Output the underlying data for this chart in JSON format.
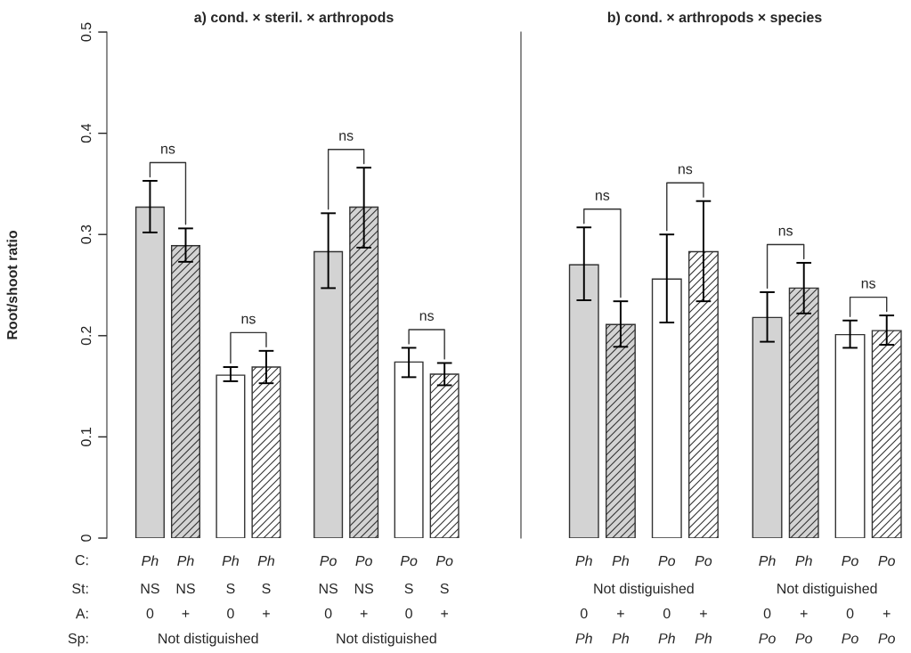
{
  "chart_data": [
    {
      "type": "bar",
      "title": "a) cond. × steril. × arthropods",
      "ylabel": "Root/shoot ratio",
      "categories": [
        "Ph",
        "Ph",
        "Ph",
        "Ph",
        "Po",
        "Po",
        "Po",
        "Po"
      ],
      "values": [
        0.327,
        0.289,
        0.161,
        0.169,
        0.283,
        0.327,
        0.174,
        0.162
      ],
      "errors": [
        [
          0.302,
          0.353
        ],
        [
          0.273,
          0.306
        ],
        [
          0.155,
          0.169
        ],
        [
          0.153,
          0.185
        ],
        [
          0.247,
          0.321
        ],
        [
          0.287,
          0.366
        ],
        [
          0.159,
          0.188
        ],
        [
          0.151,
          0.173
        ]
      ],
      "colors": [
        "#d3d3d3",
        "#d3d3d3",
        "#ffffff",
        "#ffffff",
        "#d3d3d3",
        "#d3d3d3",
        "#ffffff",
        "#ffffff"
      ],
      "ylim": [
        0,
        0.5
      ],
      "yticks": [
        0,
        0.1,
        0.2,
        0.3,
        0.4,
        0.5
      ],
      "grid": false,
      "legend": false,
      "annotations": [
        "C:",
        "St:",
        "A:",
        "Sp:",
        "NS",
        "NS",
        "S",
        "S",
        "NS",
        "NS",
        "S",
        "S",
        "0",
        "+",
        "0",
        "+",
        "0",
        "+",
        "0",
        "+",
        "Not distiguished",
        "Not distiguished",
        "ns",
        "ns",
        "ns",
        "ns"
      ]
    },
    {
      "type": "bar",
      "title": "b) cond. × arthropods × species",
      "categories": [
        "Ph",
        "Ph",
        "Po",
        "Po",
        "Ph",
        "Ph",
        "Po",
        "Po"
      ],
      "values": [
        0.27,
        0.211,
        0.256,
        0.283,
        0.218,
        0.247,
        0.201,
        0.205
      ],
      "errors": [
        [
          0.235,
          0.307
        ],
        [
          0.189,
          0.234
        ],
        [
          0.213,
          0.3
        ],
        [
          0.234,
          0.333
        ],
        [
          0.194,
          0.243
        ],
        [
          0.222,
          0.272
        ],
        [
          0.188,
          0.215
        ],
        [
          0.191,
          0.22
        ]
      ],
      "colors": [
        "#d3d3d3",
        "#d3d3d3",
        "#ffffff",
        "#ffffff",
        "#d3d3d3",
        "#d3d3d3",
        "#ffffff",
        "#ffffff"
      ],
      "ylim": [
        0,
        0.5
      ],
      "yticks": [
        0,
        0.1,
        0.2,
        0.3,
        0.4,
        0.5
      ],
      "tick_labels": "x",
      "grid": false,
      "legend": false,
      "annotations": [
        "0",
        "+",
        "0",
        "+",
        "0",
        "+",
        "0",
        "+",
        "Ph",
        "Ph",
        "Ph",
        "Ph",
        "Po",
        "Po",
        "Po",
        "Po",
        "Not distiguished",
        "Not distiguished",
        "ns",
        "ns",
        "ns",
        "ns"
      ]
    }
  ]
}
